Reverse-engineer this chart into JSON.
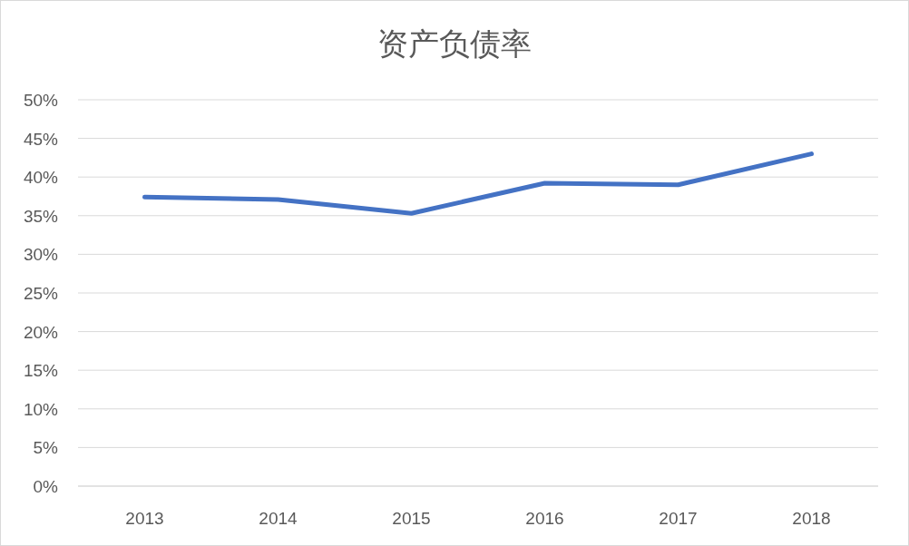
{
  "chart_data": {
    "type": "line",
    "title": "资产负债率",
    "categories": [
      "2013",
      "2014",
      "2015",
      "2016",
      "2017",
      "2018"
    ],
    "series": [
      {
        "color": "#4472c4",
        "values": [
          37.4,
          37.1,
          35.3,
          39.2,
          39.0,
          43.0
        ]
      }
    ],
    "ylim": [
      0,
      50
    ],
    "yticks": [
      {
        "value": 0,
        "label": "0%"
      },
      {
        "value": 5,
        "label": "5%"
      },
      {
        "value": 10,
        "label": "10%"
      },
      {
        "value": 15,
        "label": "15%"
      },
      {
        "value": 20,
        "label": "20%"
      },
      {
        "value": 25,
        "label": "25%"
      },
      {
        "value": 30,
        "label": "30%"
      },
      {
        "value": 35,
        "label": "35%"
      },
      {
        "value": 40,
        "label": "40%"
      },
      {
        "value": 45,
        "label": "45%"
      },
      {
        "value": 50,
        "label": "50%"
      }
    ],
    "grid": "y",
    "marker": "none",
    "line_style": "solid"
  }
}
